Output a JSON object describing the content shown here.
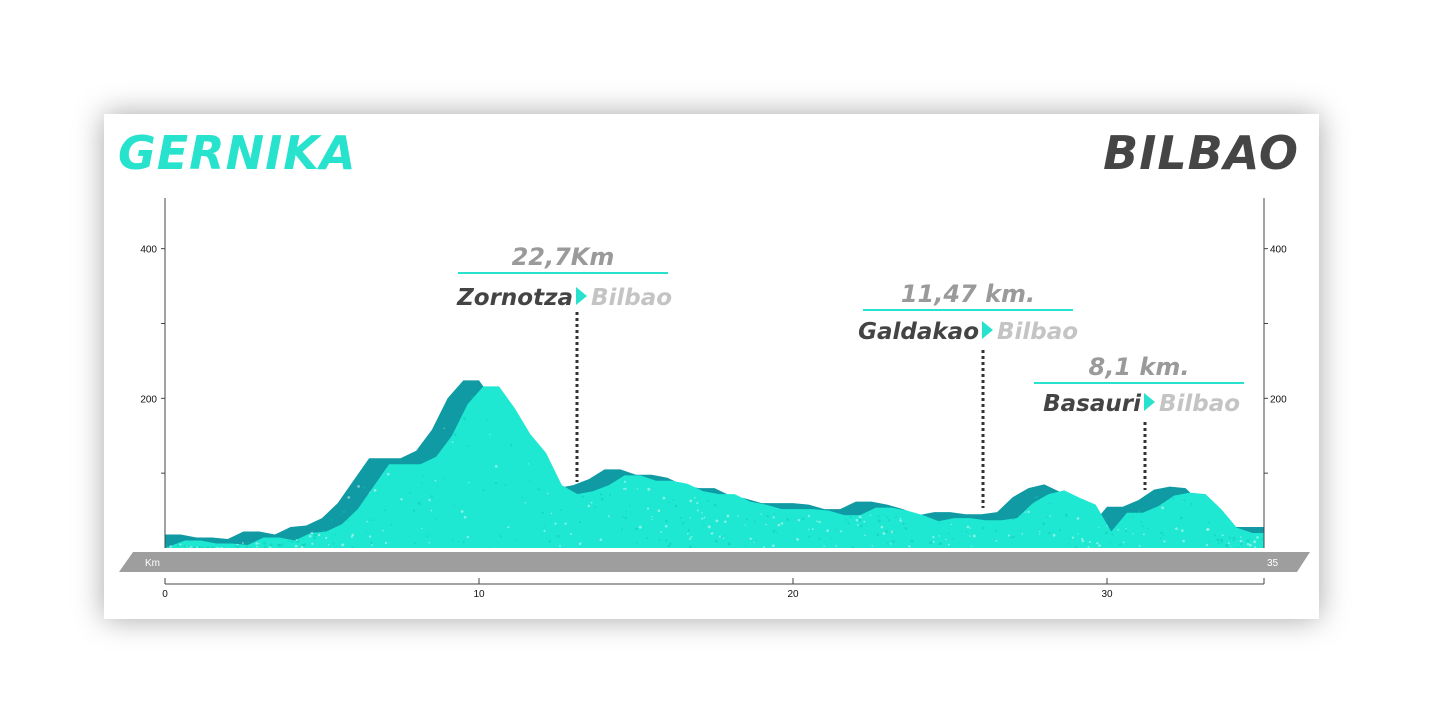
{
  "route": {
    "start": "GERNIKA",
    "end": "BILBAO"
  },
  "colors": {
    "fill": "#1ee8d2",
    "shade": "#0f9aa4",
    "cyan_accent": "#27e3cd",
    "dark_text": "#444444",
    "light_text": "#c4c4c4",
    "band": "#9e9e9e"
  },
  "chart_data": {
    "type": "area",
    "title": "",
    "xlabel": "Km",
    "ylabel": "",
    "xlim": [
      0,
      35
    ],
    "ylim": [
      0,
      465
    ],
    "x_ticks": [
      0,
      10,
      20,
      30
    ],
    "y_ticks": [
      200,
      400
    ],
    "band_end_label": "35",
    "series": [
      {
        "x": [
          0,
          0.5,
          1,
          1.5,
          2,
          2.5,
          3,
          3.5,
          4,
          4.5,
          5,
          5.5,
          6,
          6.5,
          7,
          7.5,
          8,
          8.5,
          9,
          9.5,
          10,
          10.5,
          11,
          11.5,
          12,
          12.5,
          13,
          13.5,
          14,
          14.5,
          15,
          15.5,
          16,
          16.5,
          17,
          17.5,
          18,
          18.5,
          19,
          19.5,
          20,
          20.5,
          21,
          21.5,
          22,
          22.5,
          23,
          23.5,
          24,
          24.5,
          25,
          25.5,
          26,
          26.5,
          27,
          27.5,
          28,
          28.5,
          29,
          29.5,
          30,
          30.5,
          31,
          31.5,
          32,
          32.5,
          33,
          33.5,
          34,
          34.5,
          35
        ],
        "y": [
          18,
          18,
          14,
          14,
          12,
          22,
          22,
          18,
          28,
          30,
          40,
          60,
          90,
          120,
          120,
          120,
          130,
          158,
          200,
          224,
          224,
          195,
          160,
          135,
          92,
          80,
          84,
          92,
          105,
          105,
          98,
          98,
          94,
          84,
          80,
          80,
          70,
          66,
          60,
          60,
          60,
          58,
          52,
          52,
          62,
          62,
          58,
          52,
          44,
          48,
          48,
          45,
          45,
          48,
          68,
          80,
          85,
          75,
          66,
          30,
          55,
          55,
          64,
          78,
          82,
          80,
          60,
          35,
          28,
          28,
          28
        ]
      }
    ],
    "annotations": [
      {
        "km": 13,
        "distance": "22,7Km",
        "from": "Zornotza",
        "to": "Bilbao"
      },
      {
        "km": 25.8,
        "distance": "11,47 km.",
        "from": "Galdakao",
        "to": "Bilbao"
      },
      {
        "km": 31,
        "distance": "8,1 km.",
        "from": "Basauri",
        "to": "Bilbao"
      }
    ]
  }
}
